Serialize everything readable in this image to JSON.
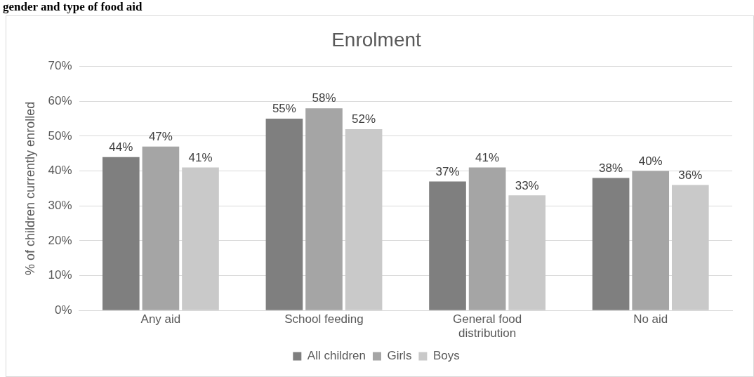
{
  "chart_data": {
    "type": "bar",
    "title": "Enrolment",
    "ylabel": "% of children currently enrolled",
    "annotations": [
      "gender and type of food aid"
    ],
    "categories": [
      "Any aid",
      "School feeding",
      "General food distribution",
      "No aid"
    ],
    "series": [
      {
        "name": "All children",
        "color": "#7f7f7f",
        "values": [
          44,
          55,
          37,
          38
        ],
        "value_labels": [
          "44%",
          "55%",
          "37%",
          "38%"
        ]
      },
      {
        "name": "Girls",
        "color": "#a5a5a5",
        "values": [
          47,
          58,
          41,
          40
        ],
        "value_labels": [
          "47%",
          "58%",
          "41%",
          "40%"
        ]
      },
      {
        "name": "Boys",
        "color": "#c9c9c9",
        "values": [
          41,
          52,
          33,
          36
        ],
        "value_labels": [
          "41%",
          "52%",
          "33%",
          "36%"
        ]
      }
    ],
    "ylim": [
      0,
      70
    ],
    "yticks": [
      {
        "value": 0,
        "label": "0%"
      },
      {
        "value": 10,
        "label": "10%"
      },
      {
        "value": 20,
        "label": "20%"
      },
      {
        "value": 30,
        "label": "30%"
      },
      {
        "value": 40,
        "label": "40%"
      },
      {
        "value": 50,
        "label": "50%"
      },
      {
        "value": 60,
        "label": "60%"
      },
      {
        "value": 70,
        "label": "70%"
      }
    ],
    "grid": "y",
    "legend": "bottom"
  }
}
